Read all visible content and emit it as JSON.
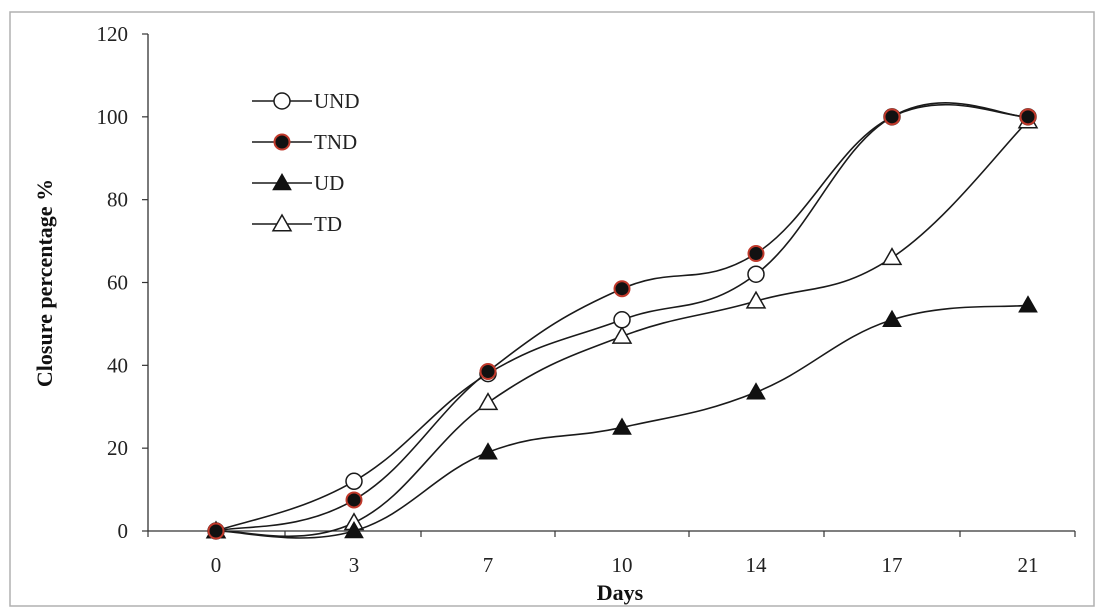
{
  "chart_data": {
    "type": "line",
    "xlabel": "Days",
    "ylabel": "Closure percentage %",
    "categories": [
      "0",
      "3",
      "7",
      "10",
      "14",
      "17",
      "21"
    ],
    "ylim": [
      0,
      120
    ],
    "yticks": [
      "0",
      "20",
      "40",
      "60",
      "80",
      "100",
      "120"
    ],
    "grid": false,
    "legend_position": "top-left",
    "series": [
      {
        "name": "UND",
        "marker": "circle-open",
        "values": [
          0,
          12,
          38,
          51,
          62,
          100,
          100
        ]
      },
      {
        "name": "TND",
        "marker": "circle-filled",
        "values": [
          0,
          7.5,
          38.5,
          58.5,
          67,
          100,
          100
        ]
      },
      {
        "name": "UD",
        "marker": "triangle-filled",
        "values": [
          0,
          0,
          19,
          25,
          33.5,
          51,
          54.5
        ]
      },
      {
        "name": "TD",
        "marker": "triangle-open",
        "values": [
          0,
          2,
          31,
          47,
          55.5,
          66,
          99
        ]
      }
    ],
    "colors": {
      "line": "#1a1a1a",
      "tnd_marker_edge": "#c0392b",
      "frame": "#b0b0b0"
    }
  }
}
